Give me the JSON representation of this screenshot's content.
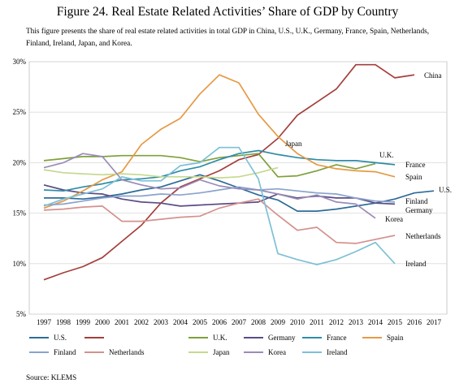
{
  "figure": {
    "title": "Figure 24. Real Estate Related Activities’ Share of GDP by Country",
    "subtitle": "This figure presents the share of real estate related activities in total GDP in China, U.S., U.K., Germany, France, Spain, Netherlands, Finland, Ireland, Japan, and Korea.",
    "source": "Source: KLEMS"
  },
  "chart_data": {
    "type": "line",
    "title": "Figure 24. Real Estate Related Activities’ Share of GDP by Country",
    "xlabel": "",
    "ylabel": "",
    "x": [
      "1997",
      "1998",
      "1999",
      "2000",
      "2001",
      "2002",
      "2003",
      "2004",
      "2005",
      "2006",
      "2007",
      "2008",
      "2009",
      "2010",
      "2011",
      "2012",
      "2013",
      "2014",
      "2015",
      "2016",
      "2017"
    ],
    "y_ticks": [
      "5%",
      "10%",
      "15%",
      "20%",
      "25%",
      "30%"
    ],
    "ylim": [
      5,
      30
    ],
    "grid": true,
    "legend": "bottom",
    "series": [
      {
        "name": "U.S.",
        "label": "U.S.",
        "color": "#2e6b96",
        "values": [
          16.5,
          16.5,
          16.4,
          16.6,
          16.9,
          17.3,
          17.6,
          18.2,
          18.8,
          18.2,
          17.5,
          16.8,
          16.3,
          15.2,
          15.2,
          15.4,
          15.7,
          16.0,
          16.4,
          17.0,
          17.2
        ]
      },
      {
        "name": "",
        "label": "China",
        "color": "#a33f3c",
        "values": [
          8.4,
          9.1,
          9.7,
          10.6,
          12.2,
          13.8,
          16.0,
          17.6,
          18.4,
          19.2,
          20.3,
          20.8,
          22.4,
          24.7,
          26.0,
          27.3,
          29.7,
          29.7,
          28.4,
          28.7,
          null
        ]
      },
      {
        "name": "U.K.",
        "label": "U.K.",
        "color": "#7fa03b",
        "values": [
          20.2,
          20.4,
          20.6,
          20.6,
          20.7,
          20.7,
          20.7,
          20.5,
          20.1,
          20.5,
          20.7,
          20.9,
          18.6,
          18.7,
          19.2,
          19.8,
          19.4,
          19.9,
          null,
          null,
          null
        ]
      },
      {
        "name": "Germany",
        "label": "Germany",
        "color": "#5b4c85",
        "values": [
          17.8,
          17.3,
          17.0,
          16.9,
          16.4,
          16.1,
          16.0,
          15.7,
          15.8,
          15.9,
          16.0,
          16.1,
          16.9,
          16.5,
          16.7,
          16.5,
          16.5,
          16.0,
          15.9,
          null,
          null
        ]
      },
      {
        "name": "France",
        "label": "France",
        "color": "#2f8ca6",
        "values": [
          17.3,
          17.2,
          17.6,
          17.9,
          18.3,
          18.4,
          18.6,
          19.2,
          19.6,
          20.3,
          20.9,
          21.2,
          20.8,
          20.5,
          20.3,
          20.2,
          20.2,
          20.0,
          19.8,
          null,
          null
        ]
      },
      {
        "name": "Spain",
        "label": "Spain",
        "color": "#e59a46",
        "values": [
          15.5,
          16.2,
          17.2,
          18.3,
          19.1,
          21.8,
          23.3,
          24.4,
          26.8,
          28.7,
          27.9,
          24.8,
          22.6,
          20.9,
          19.8,
          19.4,
          19.2,
          19.1,
          18.6,
          null,
          null
        ]
      },
      {
        "name": "Finland",
        "label": "Finland",
        "color": "#8aa3cd",
        "values": [
          15.8,
          15.9,
          16.2,
          16.5,
          16.7,
          16.7,
          16.9,
          16.8,
          17.0,
          17.3,
          17.6,
          17.3,
          17.4,
          17.2,
          17.0,
          16.9,
          16.5,
          16.2,
          16.1,
          null,
          null
        ]
      },
      {
        "name": "Netherlands",
        "label": "Netherlands",
        "color": "#d4918e",
        "values": [
          15.3,
          15.4,
          15.6,
          15.7,
          14.2,
          14.2,
          14.4,
          14.6,
          14.7,
          15.5,
          16.0,
          16.4,
          14.8,
          13.3,
          13.6,
          12.1,
          12.0,
          12.4,
          12.8,
          null,
          null
        ]
      },
      {
        "name": "Japan",
        "label": "Japan",
        "color": "#c5d98f",
        "values": [
          19.3,
          19.0,
          18.9,
          18.8,
          18.9,
          18.8,
          18.6,
          18.6,
          18.6,
          18.5,
          18.6,
          19.0,
          19.5,
          null,
          null,
          null,
          null,
          null,
          null,
          null,
          null
        ]
      },
      {
        "name": "Korea",
        "label": "Korea",
        "color": "#9b8bb8",
        "values": [
          19.5,
          20.0,
          20.9,
          20.6,
          18.3,
          17.8,
          17.4,
          17.5,
          18.3,
          17.7,
          17.4,
          17.3,
          16.9,
          16.4,
          16.8,
          16.1,
          15.9,
          14.5,
          null,
          null,
          null
        ]
      },
      {
        "name": "Ireland",
        "label": "Ireland",
        "color": "#7ec0d6",
        "values": [
          15.7,
          16.4,
          16.9,
          17.4,
          18.6,
          18.2,
          18.2,
          19.7,
          20.0,
          21.5,
          21.5,
          18.4,
          11.0,
          10.4,
          9.9,
          10.4,
          11.2,
          12.1,
          10.0,
          null,
          null
        ]
      }
    ]
  }
}
